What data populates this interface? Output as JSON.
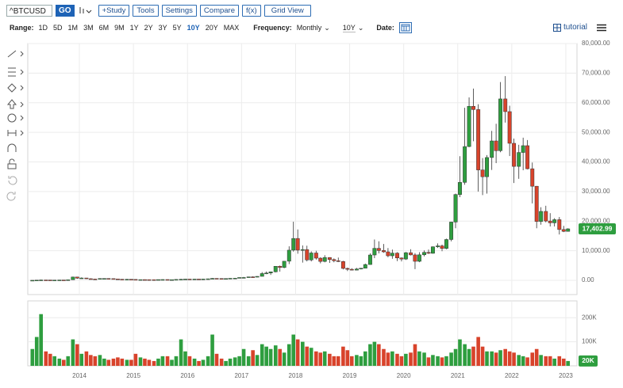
{
  "toolbar": {
    "symbol": "^BTCUSD",
    "go": "GO",
    "buttons": [
      "+Study",
      "Tools",
      "Settings",
      "Compare",
      "f(x)",
      "Grid View"
    ],
    "range_label": "Range:",
    "ranges": [
      "1D",
      "5D",
      "1M",
      "3M",
      "6M",
      "9M",
      "1Y",
      "2Y",
      "3Y",
      "5Y",
      "10Y",
      "20Y",
      "MAX"
    ],
    "frequency_label": "Frequency:",
    "frequency": "Monthly",
    "period": "10Y",
    "date_label": "Date:",
    "tutorial": "tutorial"
  },
  "chart_data": [
    {
      "type": "candlestick",
      "up_color": "#2e9e3f",
      "down_color": "#d8432b",
      "grid": true,
      "last_close_label": "17,402.99",
      "xlim": [
        2013.045,
        2023.206
      ],
      "xticks": [
        2014,
        2015,
        2016,
        2017,
        2018,
        2019,
        2020,
        2021,
        2022,
        2023
      ],
      "ylim": [
        -4800,
        80000
      ],
      "yticks": [
        {
          "value": 0,
          "label": "0.00"
        },
        {
          "value": 10000,
          "label": "10,000.00"
        },
        {
          "value": 20000,
          "label": "20,000.00"
        },
        {
          "value": 30000,
          "label": "30,000.00"
        },
        {
          "value": 40000,
          "label": "40,000.00"
        },
        {
          "value": 50000,
          "label": "50,000.00"
        },
        {
          "value": 60000,
          "label": "60,000.00"
        },
        {
          "value": 70000,
          "label": "70,000.00"
        },
        {
          "value": 80000,
          "label": "80,000.00"
        }
      ],
      "x": [
        2013.13,
        2013.21,
        2013.29,
        2013.38,
        2013.46,
        2013.54,
        2013.63,
        2013.71,
        2013.79,
        2013.88,
        2013.96,
        2014.04,
        2014.13,
        2014.21,
        2014.29,
        2014.38,
        2014.46,
        2014.54,
        2014.63,
        2014.71,
        2014.79,
        2014.88,
        2014.96,
        2015.04,
        2015.13,
        2015.21,
        2015.29,
        2015.38,
        2015.46,
        2015.54,
        2015.63,
        2015.71,
        2015.79,
        2015.88,
        2015.96,
        2016.04,
        2016.13,
        2016.21,
        2016.29,
        2016.38,
        2016.46,
        2016.54,
        2016.63,
        2016.71,
        2016.79,
        2016.88,
        2016.96,
        2017.04,
        2017.13,
        2017.21,
        2017.29,
        2017.38,
        2017.46,
        2017.54,
        2017.63,
        2017.71,
        2017.79,
        2017.88,
        2017.96,
        2018.04,
        2018.13,
        2018.21,
        2018.29,
        2018.38,
        2018.46,
        2018.54,
        2018.63,
        2018.71,
        2018.79,
        2018.88,
        2018.96,
        2019.04,
        2019.13,
        2019.21,
        2019.29,
        2019.38,
        2019.46,
        2019.54,
        2019.63,
        2019.71,
        2019.79,
        2019.88,
        2019.96,
        2020.04,
        2020.13,
        2020.21,
        2020.29,
        2020.38,
        2020.46,
        2020.54,
        2020.63,
        2020.71,
        2020.79,
        2020.88,
        2020.96,
        2021.04,
        2021.13,
        2021.21,
        2021.29,
        2021.38,
        2021.46,
        2021.54,
        2021.63,
        2021.71,
        2021.79,
        2021.88,
        2021.96,
        2022.04,
        2022.13,
        2022.21,
        2022.29,
        2022.38,
        2022.46,
        2022.54,
        2022.63,
        2022.71,
        2022.79,
        2022.88,
        2022.96,
        2023.04
      ],
      "open": [
        20,
        33,
        93,
        139,
        129,
        97,
        106,
        135,
        133,
        198,
        1130,
        732,
        800,
        550,
        450,
        445,
        630,
        640,
        585,
        480,
        390,
        340,
        375,
        320,
        220,
        255,
        245,
        235,
        230,
        265,
        285,
        230,
        235,
        315,
        375,
        430,
        370,
        435,
        415,
        450,
        530,
        670,
        625,
        575,
        610,
        700,
        745,
        965,
        970,
        1190,
        1080,
        1350,
        2300,
        2480,
        2880,
        4760,
        4340,
        6470,
        10200,
        14150,
        10200,
        10400,
        6900,
        9250,
        7500,
        6400,
        7730,
        7030,
        6630,
        6370,
        4040,
        3740,
        3460,
        3850,
        4100,
        5350,
        8570,
        10820,
        10080,
        9630,
        8300,
        9200,
        7570,
        7200,
        9350,
        8600,
        6430,
        8630,
        9450,
        9140,
        11350,
        11650,
        10780,
        13800,
        19700,
        29000,
        33100,
        45200,
        58800,
        57700,
        37300,
        35000,
        41500,
        47100,
        43800,
        61300,
        57000,
        46300,
        38500,
        43200,
        45500,
        37700,
        31800,
        19900,
        23300,
        20050,
        19430,
        20500,
        17170,
        16550
      ],
      "high": [
        35,
        95,
        260,
        140,
        130,
        110,
        135,
        145,
        210,
        1240,
        1160,
        1000,
        800,
        700,
        550,
        630,
        680,
        650,
        600,
        490,
        410,
        460,
        390,
        320,
        270,
        300,
        260,
        250,
        270,
        315,
        285,
        250,
        340,
        500,
        470,
        460,
        440,
        440,
        470,
        550,
        780,
        700,
        630,
        620,
        720,
        760,
        980,
        1150,
        1200,
        1350,
        1390,
        2800,
        3000,
        2950,
        4800,
        5000,
        6500,
        11500,
        19800,
        17200,
        11800,
        11700,
        9800,
        10000,
        7800,
        8500,
        7800,
        7400,
        7700,
        6600,
        4300,
        4100,
        4200,
        4150,
        5650,
        9100,
        13800,
        13200,
        12300,
        10900,
        10400,
        9500,
        7750,
        9600,
        10500,
        9200,
        9500,
        10100,
        10400,
        11450,
        12500,
        12100,
        14100,
        19800,
        29300,
        41950,
        58300,
        61800,
        64800,
        59500,
        41300,
        42300,
        50500,
        52900,
        67000,
        69000,
        59000,
        47900,
        45800,
        48200,
        47400,
        39800,
        31900,
        24700,
        25200,
        22700,
        21000,
        21400,
        18400,
        17600
      ],
      "low": [
        20,
        30,
        70,
        80,
        90,
        65,
        100,
        120,
        105,
        190,
        520,
        700,
        420,
        440,
        350,
        440,
        550,
        560,
        450,
        370,
        280,
        320,
        310,
        160,
        210,
        240,
        210,
        225,
        220,
        250,
        200,
        220,
        235,
        310,
        350,
        350,
        360,
        400,
        410,
        440,
        530,
        600,
        530,
        570,
        600,
        690,
        740,
        750,
        920,
        890,
        1050,
        1350,
        2100,
        1830,
        2700,
        2950,
        4100,
        5500,
        9700,
        9000,
        6000,
        6400,
        6400,
        7000,
        5750,
        6100,
        5900,
        6100,
        6200,
        3700,
        3150,
        3350,
        3400,
        3700,
        4050,
        5300,
        7500,
        9100,
        9300,
        7800,
        7300,
        6500,
        6400,
        6900,
        8400,
        3800,
        6150,
        8100,
        8900,
        9000,
        10950,
        9850,
        10500,
        13200,
        17600,
        28100,
        32300,
        45000,
        47000,
        30000,
        28800,
        29300,
        37300,
        39600,
        43300,
        53300,
        42000,
        32900,
        34300,
        37200,
        37500,
        26000,
        17600,
        18800,
        19600,
        18200,
        18200,
        15500,
        16300,
        16500
      ],
      "close": [
        33,
        93,
        139,
        129,
        97,
        106,
        135,
        133,
        198,
        1130,
        732,
        800,
        550,
        450,
        445,
        630,
        640,
        585,
        480,
        390,
        340,
        375,
        320,
        220,
        255,
        245,
        235,
        230,
        265,
        285,
        230,
        235,
        315,
        375,
        430,
        370,
        435,
        415,
        450,
        530,
        670,
        625,
        575,
        610,
        700,
        745,
        965,
        970,
        1190,
        1080,
        1350,
        2300,
        2480,
        2880,
        4760,
        4340,
        6470,
        10200,
        14150,
        10200,
        10400,
        6900,
        9250,
        7500,
        6400,
        7730,
        7030,
        6630,
        6370,
        4040,
        3740,
        3460,
        3850,
        4100,
        5350,
        8570,
        10820,
        10080,
        9630,
        8300,
        9200,
        7570,
        7200,
        9350,
        8600,
        6430,
        8630,
        9450,
        9140,
        11350,
        11650,
        10780,
        13800,
        19700,
        29000,
        33100,
        45200,
        58800,
        57700,
        37300,
        35000,
        41500,
        47100,
        43800,
        61300,
        57000,
        46300,
        38500,
        43200,
        45500,
        37700,
        31800,
        19900,
        23300,
        20050,
        19430,
        20500,
        17170,
        16550,
        17402.99
      ]
    },
    {
      "type": "bar",
      "grid": true,
      "last_value_label": "20K",
      "xlim": [
        2013.045,
        2023.206
      ],
      "xticks": [
        2014,
        2015,
        2016,
        2017,
        2018,
        2019,
        2020,
        2021,
        2022,
        2023
      ],
      "ylim": [
        0,
        270000
      ],
      "yticks": [
        {
          "value": 100000,
          "label": "100K"
        },
        {
          "value": 200000,
          "label": "200K"
        }
      ],
      "values": [
        70000,
        120000,
        215000,
        60000,
        50000,
        40000,
        30000,
        25000,
        40000,
        110000,
        90000,
        50000,
        60000,
        45000,
        40000,
        45000,
        30000,
        25000,
        30000,
        35000,
        30000,
        25000,
        25000,
        50000,
        35000,
        30000,
        25000,
        20000,
        30000,
        40000,
        40000,
        25000,
        40000,
        110000,
        60000,
        40000,
        30000,
        20000,
        25000,
        40000,
        130000,
        50000,
        30000,
        20000,
        30000,
        35000,
        40000,
        70000,
        40000,
        65000,
        45000,
        90000,
        80000,
        70000,
        85000,
        70000,
        55000,
        90000,
        130000,
        110000,
        100000,
        80000,
        75000,
        60000,
        55000,
        60000,
        50000,
        40000,
        40000,
        80000,
        65000,
        40000,
        45000,
        40000,
        60000,
        90000,
        100000,
        90000,
        70000,
        55000,
        60000,
        50000,
        40000,
        50000,
        55000,
        90000,
        60000,
        55000,
        35000,
        45000,
        40000,
        35000,
        40000,
        55000,
        70000,
        110000,
        90000,
        70000,
        80000,
        120000,
        80000,
        60000,
        60000,
        55000,
        65000,
        70000,
        60000,
        55000,
        45000,
        40000,
        35000,
        55000,
        70000,
        45000,
        40000,
        40000,
        30000,
        40000,
        30000,
        20000
      ]
    }
  ]
}
